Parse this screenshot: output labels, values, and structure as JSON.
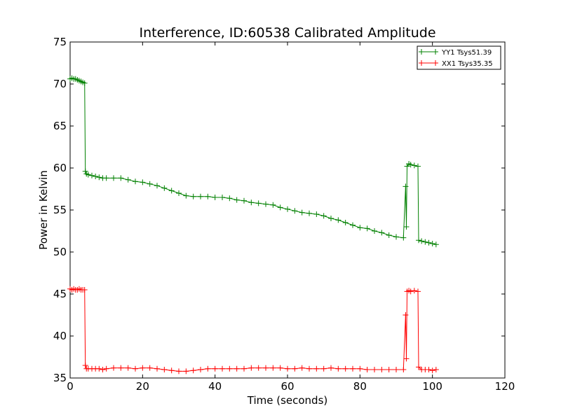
{
  "chart_data": {
    "type": "line",
    "title": "Interference, ID:60538 Calibrated Amplitude",
    "xlabel": "Time (seconds)",
    "ylabel": "Power in Kelvin",
    "xlim": [
      0,
      120
    ],
    "ylim": [
      35,
      75
    ],
    "xticks": [
      "0",
      "20",
      "40",
      "60",
      "80",
      "100",
      "120"
    ],
    "yticks": [
      "35",
      "40",
      "45",
      "50",
      "55",
      "60",
      "65",
      "70",
      "75"
    ],
    "grid": false,
    "legend_position": "top-right",
    "marker": "+",
    "series": [
      {
        "name": "YY1 Tsys51.39",
        "color": "#008000",
        "points": [
          [
            0.0,
            70.6
          ],
          [
            0.5,
            70.7
          ],
          [
            1.0,
            70.6
          ],
          [
            1.5,
            70.6
          ],
          [
            2.0,
            70.5
          ],
          [
            2.5,
            70.4
          ],
          [
            3.0,
            70.3
          ],
          [
            3.5,
            70.2
          ],
          [
            4.0,
            70.1
          ],
          [
            4.2,
            59.6
          ],
          [
            4.5,
            59.3
          ],
          [
            5.0,
            59.2
          ],
          [
            6.0,
            59.1
          ],
          [
            7.0,
            59.0
          ],
          [
            8.0,
            58.9
          ],
          [
            9.0,
            58.8
          ],
          [
            10.0,
            58.8
          ],
          [
            12.0,
            58.8
          ],
          [
            14.0,
            58.8
          ],
          [
            16.0,
            58.6
          ],
          [
            18.0,
            58.4
          ],
          [
            20.0,
            58.3
          ],
          [
            22.0,
            58.1
          ],
          [
            24.0,
            57.9
          ],
          [
            26.0,
            57.6
          ],
          [
            28.0,
            57.3
          ],
          [
            30.0,
            57.0
          ],
          [
            32.0,
            56.7
          ],
          [
            34.0,
            56.6
          ],
          [
            36.0,
            56.6
          ],
          [
            38.0,
            56.6
          ],
          [
            40.0,
            56.5
          ],
          [
            42.0,
            56.5
          ],
          [
            44.0,
            56.4
          ],
          [
            46.0,
            56.2
          ],
          [
            48.0,
            56.1
          ],
          [
            50.0,
            55.9
          ],
          [
            52.0,
            55.8
          ],
          [
            54.0,
            55.7
          ],
          [
            56.0,
            55.6
          ],
          [
            58.0,
            55.3
          ],
          [
            60.0,
            55.1
          ],
          [
            62.0,
            54.9
          ],
          [
            64.0,
            54.7
          ],
          [
            66.0,
            54.6
          ],
          [
            68.0,
            54.5
          ],
          [
            70.0,
            54.3
          ],
          [
            72.0,
            54.0
          ],
          [
            74.0,
            53.8
          ],
          [
            76.0,
            53.5
          ],
          [
            78.0,
            53.2
          ],
          [
            80.0,
            52.9
          ],
          [
            82.0,
            52.8
          ],
          [
            84.0,
            52.5
          ],
          [
            86.0,
            52.3
          ],
          [
            88.0,
            52.0
          ],
          [
            90.0,
            51.8
          ],
          [
            92.0,
            51.7
          ],
          [
            92.6,
            57.8
          ],
          [
            92.8,
            53.0
          ],
          [
            93.0,
            60.2
          ],
          [
            93.5,
            60.5
          ],
          [
            94.0,
            60.4
          ],
          [
            95.0,
            60.3
          ],
          [
            96.0,
            60.2
          ],
          [
            96.2,
            51.4
          ],
          [
            97.0,
            51.3
          ],
          [
            98.0,
            51.2
          ],
          [
            99.0,
            51.1
          ],
          [
            100.0,
            51.0
          ],
          [
            101.0,
            50.9
          ]
        ]
      },
      {
        "name": "XX1 Tsys35.35",
        "color": "#ff0000",
        "points": [
          [
            0.0,
            45.6
          ],
          [
            0.5,
            45.5
          ],
          [
            1.0,
            45.6
          ],
          [
            1.5,
            45.5
          ],
          [
            2.0,
            45.5
          ],
          [
            2.5,
            45.6
          ],
          [
            3.0,
            45.5
          ],
          [
            3.5,
            45.5
          ],
          [
            4.0,
            45.5
          ],
          [
            4.2,
            36.5
          ],
          [
            4.5,
            36.1
          ],
          [
            5.0,
            36.1
          ],
          [
            6.0,
            36.1
          ],
          [
            7.0,
            36.1
          ],
          [
            8.0,
            36.1
          ],
          [
            9.0,
            36.0
          ],
          [
            10.0,
            36.1
          ],
          [
            12.0,
            36.2
          ],
          [
            14.0,
            36.2
          ],
          [
            16.0,
            36.2
          ],
          [
            18.0,
            36.1
          ],
          [
            20.0,
            36.2
          ],
          [
            22.0,
            36.2
          ],
          [
            24.0,
            36.1
          ],
          [
            26.0,
            36.0
          ],
          [
            28.0,
            35.9
          ],
          [
            30.0,
            35.8
          ],
          [
            32.0,
            35.8
          ],
          [
            34.0,
            35.9
          ],
          [
            36.0,
            36.0
          ],
          [
            38.0,
            36.1
          ],
          [
            40.0,
            36.1
          ],
          [
            42.0,
            36.1
          ],
          [
            44.0,
            36.1
          ],
          [
            46.0,
            36.1
          ],
          [
            48.0,
            36.1
          ],
          [
            50.0,
            36.2
          ],
          [
            52.0,
            36.2
          ],
          [
            54.0,
            36.2
          ],
          [
            56.0,
            36.2
          ],
          [
            58.0,
            36.2
          ],
          [
            60.0,
            36.1
          ],
          [
            62.0,
            36.1
          ],
          [
            64.0,
            36.2
          ],
          [
            66.0,
            36.1
          ],
          [
            68.0,
            36.1
          ],
          [
            70.0,
            36.1
          ],
          [
            72.0,
            36.2
          ],
          [
            74.0,
            36.1
          ],
          [
            76.0,
            36.1
          ],
          [
            78.0,
            36.1
          ],
          [
            80.0,
            36.1
          ],
          [
            82.0,
            36.0
          ],
          [
            84.0,
            36.0
          ],
          [
            86.0,
            36.0
          ],
          [
            88.0,
            36.0
          ],
          [
            90.0,
            36.0
          ],
          [
            92.0,
            36.0
          ],
          [
            92.6,
            42.5
          ],
          [
            92.8,
            37.3
          ],
          [
            93.0,
            45.3
          ],
          [
            93.5,
            45.4
          ],
          [
            94.0,
            45.3
          ],
          [
            95.0,
            45.4
          ],
          [
            96.0,
            45.3
          ],
          [
            96.2,
            36.3
          ],
          [
            97.0,
            36.0
          ],
          [
            98.0,
            36.0
          ],
          [
            99.0,
            36.0
          ],
          [
            100.0,
            35.9
          ],
          [
            101.0,
            36.0
          ]
        ]
      }
    ]
  }
}
